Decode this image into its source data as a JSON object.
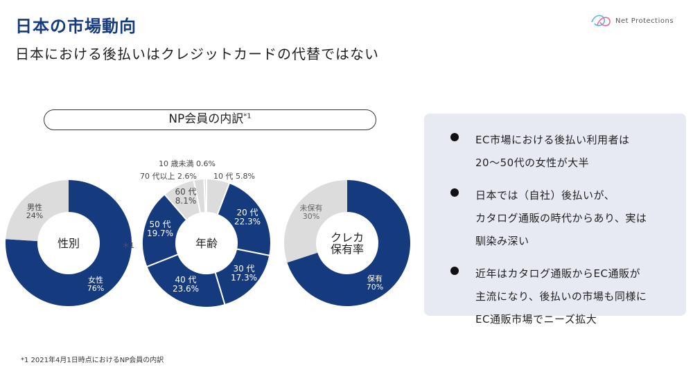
{
  "header": {
    "title": "日本の市場動向",
    "subtitle": "日本における後払いはクレジットカードの代替ではない",
    "logo_text": "Net Protections"
  },
  "section": {
    "label": "NP会員の内訳",
    "footnote_mark": "*1"
  },
  "colors": {
    "primary": "#163a7e",
    "secondary": "#dcdcdc",
    "panel": "#e8eaf3"
  },
  "chart_data": [
    {
      "type": "pie",
      "center_label": "性別",
      "slices": [
        {
          "name": "女性",
          "value": 76,
          "display": "76%"
        },
        {
          "name": "男性",
          "value": 24,
          "display": "24%"
        }
      ]
    },
    {
      "type": "pie",
      "center_label": "年齢",
      "slices": [
        {
          "name": "10 代",
          "value": 5.8,
          "display": "5.8%"
        },
        {
          "name": "20 代",
          "value": 22.3,
          "display": "22.3%"
        },
        {
          "name": "30 代",
          "value": 17.3,
          "display": "17.3%"
        },
        {
          "name": "40 代",
          "value": 23.6,
          "display": "23.6%"
        },
        {
          "name": "50 代",
          "value": 19.7,
          "display": "19.7%"
        },
        {
          "name": "60 代",
          "value": 8.1,
          "display": "8.1%"
        },
        {
          "name": "70 代以上",
          "value": 2.6,
          "display": "2.6%"
        },
        {
          "name": "10 歳未満",
          "value": 0.6,
          "display": "0.6%"
        }
      ]
    },
    {
      "type": "pie",
      "center_label": "クレカ保有率",
      "center_lines": [
        "クレカ",
        "保有率"
      ],
      "slices": [
        {
          "name": "保有",
          "value": 70,
          "display": "70%"
        },
        {
          "name": "未保有",
          "value": 30,
          "display": "30%"
        }
      ]
    }
  ],
  "panel": {
    "bullets": [
      {
        "lines": [
          "EC市場における後払い利用者は",
          "20～50代の女性が大半"
        ]
      },
      {
        "lines": [
          "日本では（自社）後払いが、",
          "カタログ通販の時代からあり、実は",
          "馴染み深い"
        ]
      },
      {
        "lines": [
          "近年はカタログ通販からEC通販が",
          "主流になり、後払いの市場も同様に",
          "EC通販市場でニーズ拡大"
        ]
      }
    ]
  },
  "footnote": "*1 2021年4月1日時点におけるNP会員の内訳"
}
